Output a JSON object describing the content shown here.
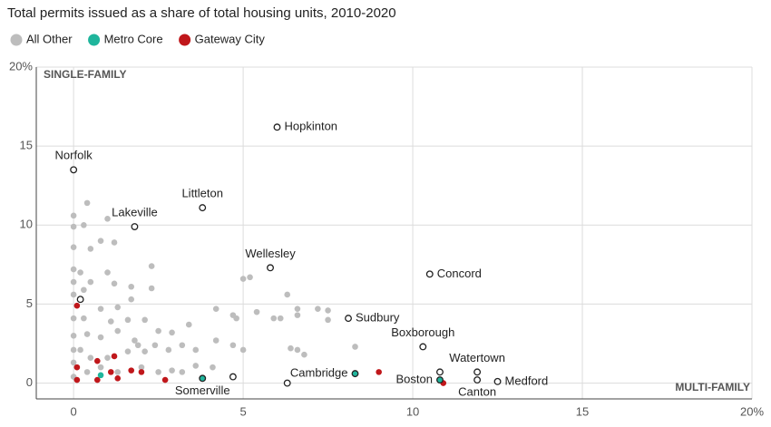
{
  "chart_data": {
    "type": "scatter",
    "title": "Total permits issued as a share of total housing units, 2010-2020",
    "annotations": [
      "SINGLE-FAMILY",
      "MULTI-FAMILY"
    ],
    "xlim": [
      -1.1,
      20
    ],
    "ylim": [
      -1,
      20
    ],
    "xticks": [
      0,
      5,
      10,
      15,
      {
        "value": 20,
        "label": "20%"
      }
    ],
    "yticks": [
      0,
      5,
      10,
      15,
      {
        "value": 20,
        "label": "20%"
      }
    ],
    "grid": true,
    "legend": "top",
    "series": [
      {
        "name": "All Other",
        "color": "#bdbdbd",
        "x": [
          6.0,
          0,
          3.8,
          1.8,
          5.8,
          10.5,
          8.1,
          10.3,
          11.9,
          12.5,
          11.9,
          0,
          0,
          0.4,
          0.3,
          0,
          0.5,
          0.8,
          1.2,
          1.0,
          0,
          0.2,
          0,
          0.3,
          0,
          0.5,
          1.0,
          1.2,
          1.7,
          2.3,
          2.3,
          1.7,
          1.3,
          0.8,
          0,
          0.3,
          1.1,
          1.6,
          2.1,
          0,
          0.4,
          0.8,
          1.3,
          1.8,
          2.5,
          2.9,
          3.4,
          4.2,
          4.7,
          4.8,
          5.0,
          5.2,
          5.4,
          5.9,
          6.1,
          6.3,
          6.6,
          6.6,
          7.2,
          7.5,
          7.5,
          6.4,
          6.6,
          6.8,
          8.3,
          0,
          0.2,
          0.5,
          1.0,
          1.6,
          1.9,
          2.1,
          2.4,
          2.8,
          3.2,
          3.6,
          4.2,
          4.7,
          5.0,
          0,
          0,
          0.4,
          0.8,
          1.3,
          2.0,
          2.5,
          2.9,
          3.2,
          3.6,
          4.1,
          4.7,
          6.3,
          10.8,
          0.2
        ],
        "values": [
          16.2,
          13.5,
          11.1,
          9.9,
          7.3,
          6.9,
          4.1,
          2.3,
          0.7,
          0.1,
          0.2,
          10.6,
          9.9,
          11.4,
          10.0,
          8.6,
          8.5,
          9.0,
          8.9,
          10.4,
          7.2,
          7.0,
          6.4,
          5.9,
          5.6,
          6.4,
          7.0,
          6.3,
          6.1,
          7.4,
          6.0,
          5.3,
          4.8,
          4.7,
          4.1,
          4.1,
          3.9,
          4.0,
          4.0,
          3.0,
          3.1,
          2.9,
          3.3,
          2.7,
          3.3,
          3.2,
          3.7,
          4.7,
          4.3,
          4.1,
          6.6,
          6.7,
          4.5,
          4.1,
          4.1,
          5.6,
          4.7,
          4.3,
          4.7,
          4.6,
          4.0,
          2.2,
          2.1,
          1.8,
          2.3,
          2.1,
          2.1,
          1.6,
          1.6,
          2.0,
          2.4,
          2.0,
          2.4,
          2.1,
          2.4,
          2.1,
          2.7,
          2.4,
          2.1,
          1.3,
          0.4,
          0.7,
          1.0,
          0.7,
          1.0,
          0.7,
          0.8,
          0.7,
          1.1,
          1.0,
          0.4,
          0.0,
          0.7,
          5.3
        ],
        "labels": [
          "Hopkinton",
          "Norfolk",
          "Littleton",
          "Lakeville",
          "Wellesley",
          "Concord",
          "Sudbury",
          "Boxborough",
          "Watertown",
          "Medford",
          "Canton",
          null,
          null,
          null,
          null,
          null,
          null,
          null,
          null,
          null,
          null,
          null,
          null,
          null,
          null,
          null,
          null,
          null,
          null,
          null,
          null,
          null,
          null,
          null,
          null,
          null,
          null,
          null,
          null,
          null,
          null,
          null,
          null,
          null,
          null,
          null,
          null,
          null,
          null,
          null,
          null,
          null,
          null,
          null,
          null,
          null,
          null,
          null,
          null,
          null,
          null,
          null,
          null,
          null,
          null,
          null,
          null,
          null,
          null,
          null,
          null,
          null,
          null,
          null,
          null,
          null,
          null,
          null,
          null,
          null,
          null,
          null,
          null,
          null,
          null,
          null,
          null,
          null,
          null,
          null
        ]
      },
      {
        "name": "Metro Core",
        "color": "#1fb59c",
        "x": [
          3.8,
          8.3,
          10.8,
          0.8
        ],
        "values": [
          0.3,
          0.6,
          0.2,
          0.5
        ],
        "labels": [
          "Somerville",
          "Cambridge",
          "Boston",
          null
        ]
      },
      {
        "name": "Gateway City",
        "color": "#c0171b",
        "x": [
          0.1,
          0.1,
          0.1,
          0.7,
          0.7,
          1.2,
          1.1,
          1.3,
          1.7,
          2.0,
          2.7,
          9.0,
          10.9
        ],
        "values": [
          4.9,
          1.0,
          0.2,
          1.4,
          0.2,
          1.7,
          0.7,
          0.3,
          0.8,
          0.7,
          0.2,
          0.7,
          0.0
        ],
        "labels": [
          null,
          null,
          null,
          null,
          null,
          null,
          null,
          null,
          null,
          null,
          null,
          null,
          null
        ]
      }
    ]
  }
}
